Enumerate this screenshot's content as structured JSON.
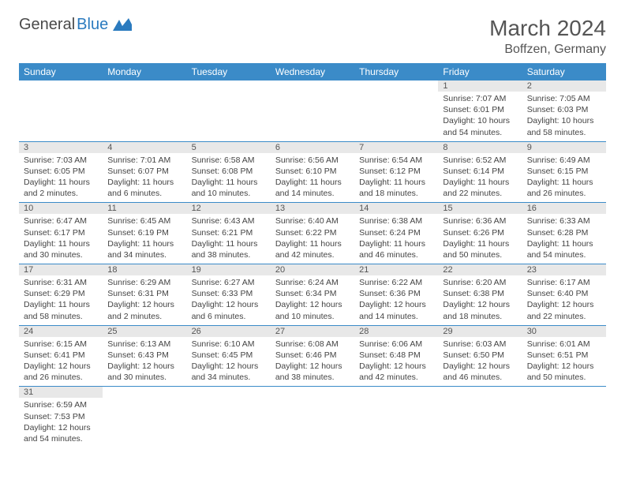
{
  "logo": {
    "text_general": "General",
    "text_blue": "Blue"
  },
  "title": "March 2024",
  "location": "Boffzen, Germany",
  "weekdays": [
    "Sunday",
    "Monday",
    "Tuesday",
    "Wednesday",
    "Thursday",
    "Friday",
    "Saturday"
  ],
  "colors": {
    "header_bg": "#3b8bc8",
    "header_text": "#ffffff",
    "daynum_bg": "#e8e8e8",
    "border": "#3b8bc8",
    "text": "#444444"
  },
  "weeks": [
    [
      null,
      null,
      null,
      null,
      null,
      {
        "day": "1",
        "sunrise": "Sunrise: 7:07 AM",
        "sunset": "Sunset: 6:01 PM",
        "daylight": "Daylight: 10 hours and 54 minutes."
      },
      {
        "day": "2",
        "sunrise": "Sunrise: 7:05 AM",
        "sunset": "Sunset: 6:03 PM",
        "daylight": "Daylight: 10 hours and 58 minutes."
      }
    ],
    [
      {
        "day": "3",
        "sunrise": "Sunrise: 7:03 AM",
        "sunset": "Sunset: 6:05 PM",
        "daylight": "Daylight: 11 hours and 2 minutes."
      },
      {
        "day": "4",
        "sunrise": "Sunrise: 7:01 AM",
        "sunset": "Sunset: 6:07 PM",
        "daylight": "Daylight: 11 hours and 6 minutes."
      },
      {
        "day": "5",
        "sunrise": "Sunrise: 6:58 AM",
        "sunset": "Sunset: 6:08 PM",
        "daylight": "Daylight: 11 hours and 10 minutes."
      },
      {
        "day": "6",
        "sunrise": "Sunrise: 6:56 AM",
        "sunset": "Sunset: 6:10 PM",
        "daylight": "Daylight: 11 hours and 14 minutes."
      },
      {
        "day": "7",
        "sunrise": "Sunrise: 6:54 AM",
        "sunset": "Sunset: 6:12 PM",
        "daylight": "Daylight: 11 hours and 18 minutes."
      },
      {
        "day": "8",
        "sunrise": "Sunrise: 6:52 AM",
        "sunset": "Sunset: 6:14 PM",
        "daylight": "Daylight: 11 hours and 22 minutes."
      },
      {
        "day": "9",
        "sunrise": "Sunrise: 6:49 AM",
        "sunset": "Sunset: 6:15 PM",
        "daylight": "Daylight: 11 hours and 26 minutes."
      }
    ],
    [
      {
        "day": "10",
        "sunrise": "Sunrise: 6:47 AM",
        "sunset": "Sunset: 6:17 PM",
        "daylight": "Daylight: 11 hours and 30 minutes."
      },
      {
        "day": "11",
        "sunrise": "Sunrise: 6:45 AM",
        "sunset": "Sunset: 6:19 PM",
        "daylight": "Daylight: 11 hours and 34 minutes."
      },
      {
        "day": "12",
        "sunrise": "Sunrise: 6:43 AM",
        "sunset": "Sunset: 6:21 PM",
        "daylight": "Daylight: 11 hours and 38 minutes."
      },
      {
        "day": "13",
        "sunrise": "Sunrise: 6:40 AM",
        "sunset": "Sunset: 6:22 PM",
        "daylight": "Daylight: 11 hours and 42 minutes."
      },
      {
        "day": "14",
        "sunrise": "Sunrise: 6:38 AM",
        "sunset": "Sunset: 6:24 PM",
        "daylight": "Daylight: 11 hours and 46 minutes."
      },
      {
        "day": "15",
        "sunrise": "Sunrise: 6:36 AM",
        "sunset": "Sunset: 6:26 PM",
        "daylight": "Daylight: 11 hours and 50 minutes."
      },
      {
        "day": "16",
        "sunrise": "Sunrise: 6:33 AM",
        "sunset": "Sunset: 6:28 PM",
        "daylight": "Daylight: 11 hours and 54 minutes."
      }
    ],
    [
      {
        "day": "17",
        "sunrise": "Sunrise: 6:31 AM",
        "sunset": "Sunset: 6:29 PM",
        "daylight": "Daylight: 11 hours and 58 minutes."
      },
      {
        "day": "18",
        "sunrise": "Sunrise: 6:29 AM",
        "sunset": "Sunset: 6:31 PM",
        "daylight": "Daylight: 12 hours and 2 minutes."
      },
      {
        "day": "19",
        "sunrise": "Sunrise: 6:27 AM",
        "sunset": "Sunset: 6:33 PM",
        "daylight": "Daylight: 12 hours and 6 minutes."
      },
      {
        "day": "20",
        "sunrise": "Sunrise: 6:24 AM",
        "sunset": "Sunset: 6:34 PM",
        "daylight": "Daylight: 12 hours and 10 minutes."
      },
      {
        "day": "21",
        "sunrise": "Sunrise: 6:22 AM",
        "sunset": "Sunset: 6:36 PM",
        "daylight": "Daylight: 12 hours and 14 minutes."
      },
      {
        "day": "22",
        "sunrise": "Sunrise: 6:20 AM",
        "sunset": "Sunset: 6:38 PM",
        "daylight": "Daylight: 12 hours and 18 minutes."
      },
      {
        "day": "23",
        "sunrise": "Sunrise: 6:17 AM",
        "sunset": "Sunset: 6:40 PM",
        "daylight": "Daylight: 12 hours and 22 minutes."
      }
    ],
    [
      {
        "day": "24",
        "sunrise": "Sunrise: 6:15 AM",
        "sunset": "Sunset: 6:41 PM",
        "daylight": "Daylight: 12 hours and 26 minutes."
      },
      {
        "day": "25",
        "sunrise": "Sunrise: 6:13 AM",
        "sunset": "Sunset: 6:43 PM",
        "daylight": "Daylight: 12 hours and 30 minutes."
      },
      {
        "day": "26",
        "sunrise": "Sunrise: 6:10 AM",
        "sunset": "Sunset: 6:45 PM",
        "daylight": "Daylight: 12 hours and 34 minutes."
      },
      {
        "day": "27",
        "sunrise": "Sunrise: 6:08 AM",
        "sunset": "Sunset: 6:46 PM",
        "daylight": "Daylight: 12 hours and 38 minutes."
      },
      {
        "day": "28",
        "sunrise": "Sunrise: 6:06 AM",
        "sunset": "Sunset: 6:48 PM",
        "daylight": "Daylight: 12 hours and 42 minutes."
      },
      {
        "day": "29",
        "sunrise": "Sunrise: 6:03 AM",
        "sunset": "Sunset: 6:50 PM",
        "daylight": "Daylight: 12 hours and 46 minutes."
      },
      {
        "day": "30",
        "sunrise": "Sunrise: 6:01 AM",
        "sunset": "Sunset: 6:51 PM",
        "daylight": "Daylight: 12 hours and 50 minutes."
      }
    ],
    [
      {
        "day": "31",
        "sunrise": "Sunrise: 6:59 AM",
        "sunset": "Sunset: 7:53 PM",
        "daylight": "Daylight: 12 hours and 54 minutes."
      },
      null,
      null,
      null,
      null,
      null,
      null
    ]
  ]
}
